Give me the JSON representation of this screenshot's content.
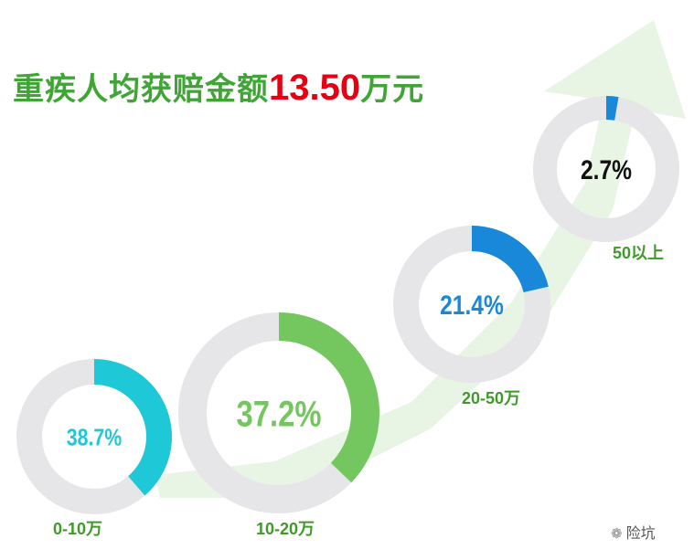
{
  "header": {
    "title_text": "重疾人均获赔金额",
    "title_amount": "13.50",
    "title_unit": "万元"
  },
  "chart_data": {
    "type": "pie",
    "title": "重疾人均获赔金额13.50万元",
    "categories": [
      "0-10万",
      "10-20万",
      "20-50万",
      "50以上"
    ],
    "values": [
      38.7,
      37.2,
      21.4,
      2.7
    ],
    "value_labels": [
      "38.7%",
      "37.2%",
      "21.4%",
      "2.7%"
    ],
    "colors": {
      "0-10万": "#1fc8d6",
      "10-20万": "#74c75e",
      "20-50万": "#1a88d8",
      "50以上": "#1a88d8",
      "track": "#e6e6e8",
      "arrow": "#e4f2df",
      "title_green": "#3fa535",
      "title_red": "#e60012",
      "label_green": "#3f9a2a"
    }
  },
  "watermark": {
    "icon": "wechat-icon",
    "text": "险坑"
  }
}
